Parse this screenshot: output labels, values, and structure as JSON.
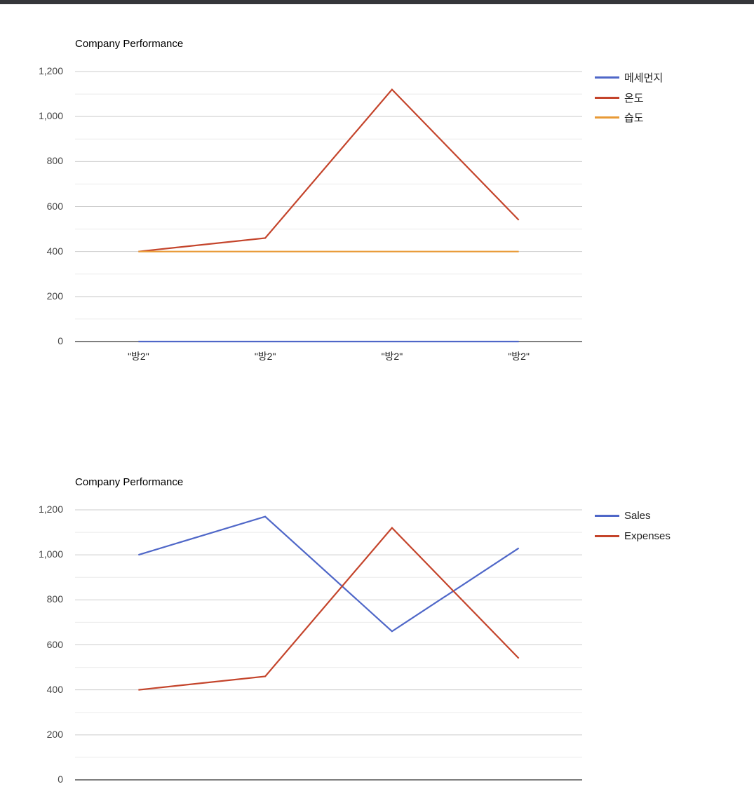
{
  "window": {
    "topbar_color": "#35363a"
  },
  "charts": [
    {
      "title": "Company Performance",
      "y_ticks": [
        "1,200",
        "1,000",
        "800",
        "600",
        "400",
        "200",
        "0"
      ],
      "x_ticks": [
        "\"방2\"",
        "\"방2\"",
        "\"방2\"",
        "\"방2\""
      ],
      "legend": [
        {
          "label": "메세먼지",
          "color": "#4f67c8"
        },
        {
          "label": "온도",
          "color": "#c4442b"
        },
        {
          "label": "습도",
          "color": "#e89a36"
        }
      ]
    },
    {
      "title": "Company Performance",
      "y_ticks": [
        "1,200",
        "1,000",
        "800"
      ],
      "legend": [
        {
          "label": "Sales",
          "color": "#4f67c8"
        },
        {
          "label": "Expenses",
          "color": "#c4442b"
        }
      ]
    }
  ],
  "chart_data": [
    {
      "type": "line",
      "title": "Company Performance",
      "categories": [
        "\"방2\"",
        "\"방2\"",
        "\"방2\"",
        "\"방2\""
      ],
      "series": [
        {
          "name": "메세먼지",
          "values": [
            0,
            0,
            0,
            0
          ],
          "color": "#4f67c8"
        },
        {
          "name": "온도",
          "values": [
            400,
            460,
            1120,
            540
          ],
          "color": "#c4442b"
        },
        {
          "name": "습도",
          "values": [
            400,
            400,
            400,
            400
          ],
          "color": "#e89a36"
        }
      ],
      "xlabel": "",
      "ylabel": "",
      "ylim": [
        0,
        1200
      ],
      "yticks": [
        0,
        200,
        400,
        600,
        800,
        1000,
        1200
      ],
      "grid": true,
      "legend_position": "right"
    },
    {
      "type": "line",
      "title": "Company Performance",
      "categories": [
        "",
        "",
        "",
        ""
      ],
      "series": [
        {
          "name": "Sales",
          "values": [
            1000,
            1170,
            660,
            1030
          ],
          "color": "#4f67c8"
        },
        {
          "name": "Expenses",
          "values": [
            400,
            460,
            1120,
            540
          ],
          "color": "#c4442b"
        }
      ],
      "xlabel": "",
      "ylabel": "",
      "ylim": [
        0,
        1200
      ],
      "yticks": [
        0,
        200,
        400,
        600,
        800,
        1000,
        1200
      ],
      "grid": true,
      "legend_position": "right",
      "note": "partially visible (cropped at bottom of viewport)"
    }
  ]
}
